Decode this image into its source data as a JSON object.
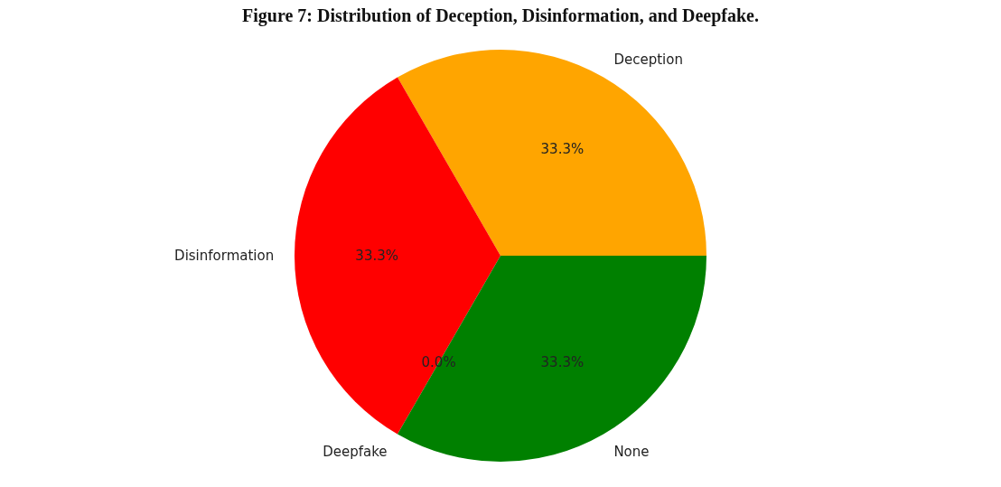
{
  "chart_data": {
    "type": "pie",
    "title": "Figure 7: Distribution of Deception, Disinformation, and Deepfake.",
    "categories": [
      "Deception",
      "Disinformation",
      "Deepfake",
      "None"
    ],
    "values": [
      33.3,
      33.3,
      0.0,
      33.3
    ],
    "value_labels": [
      "33.3%",
      "33.3%",
      "0.0%",
      "33.3%"
    ],
    "colors": [
      "#ffa500",
      "#ff0000",
      "#0000ff",
      "#008000"
    ]
  }
}
